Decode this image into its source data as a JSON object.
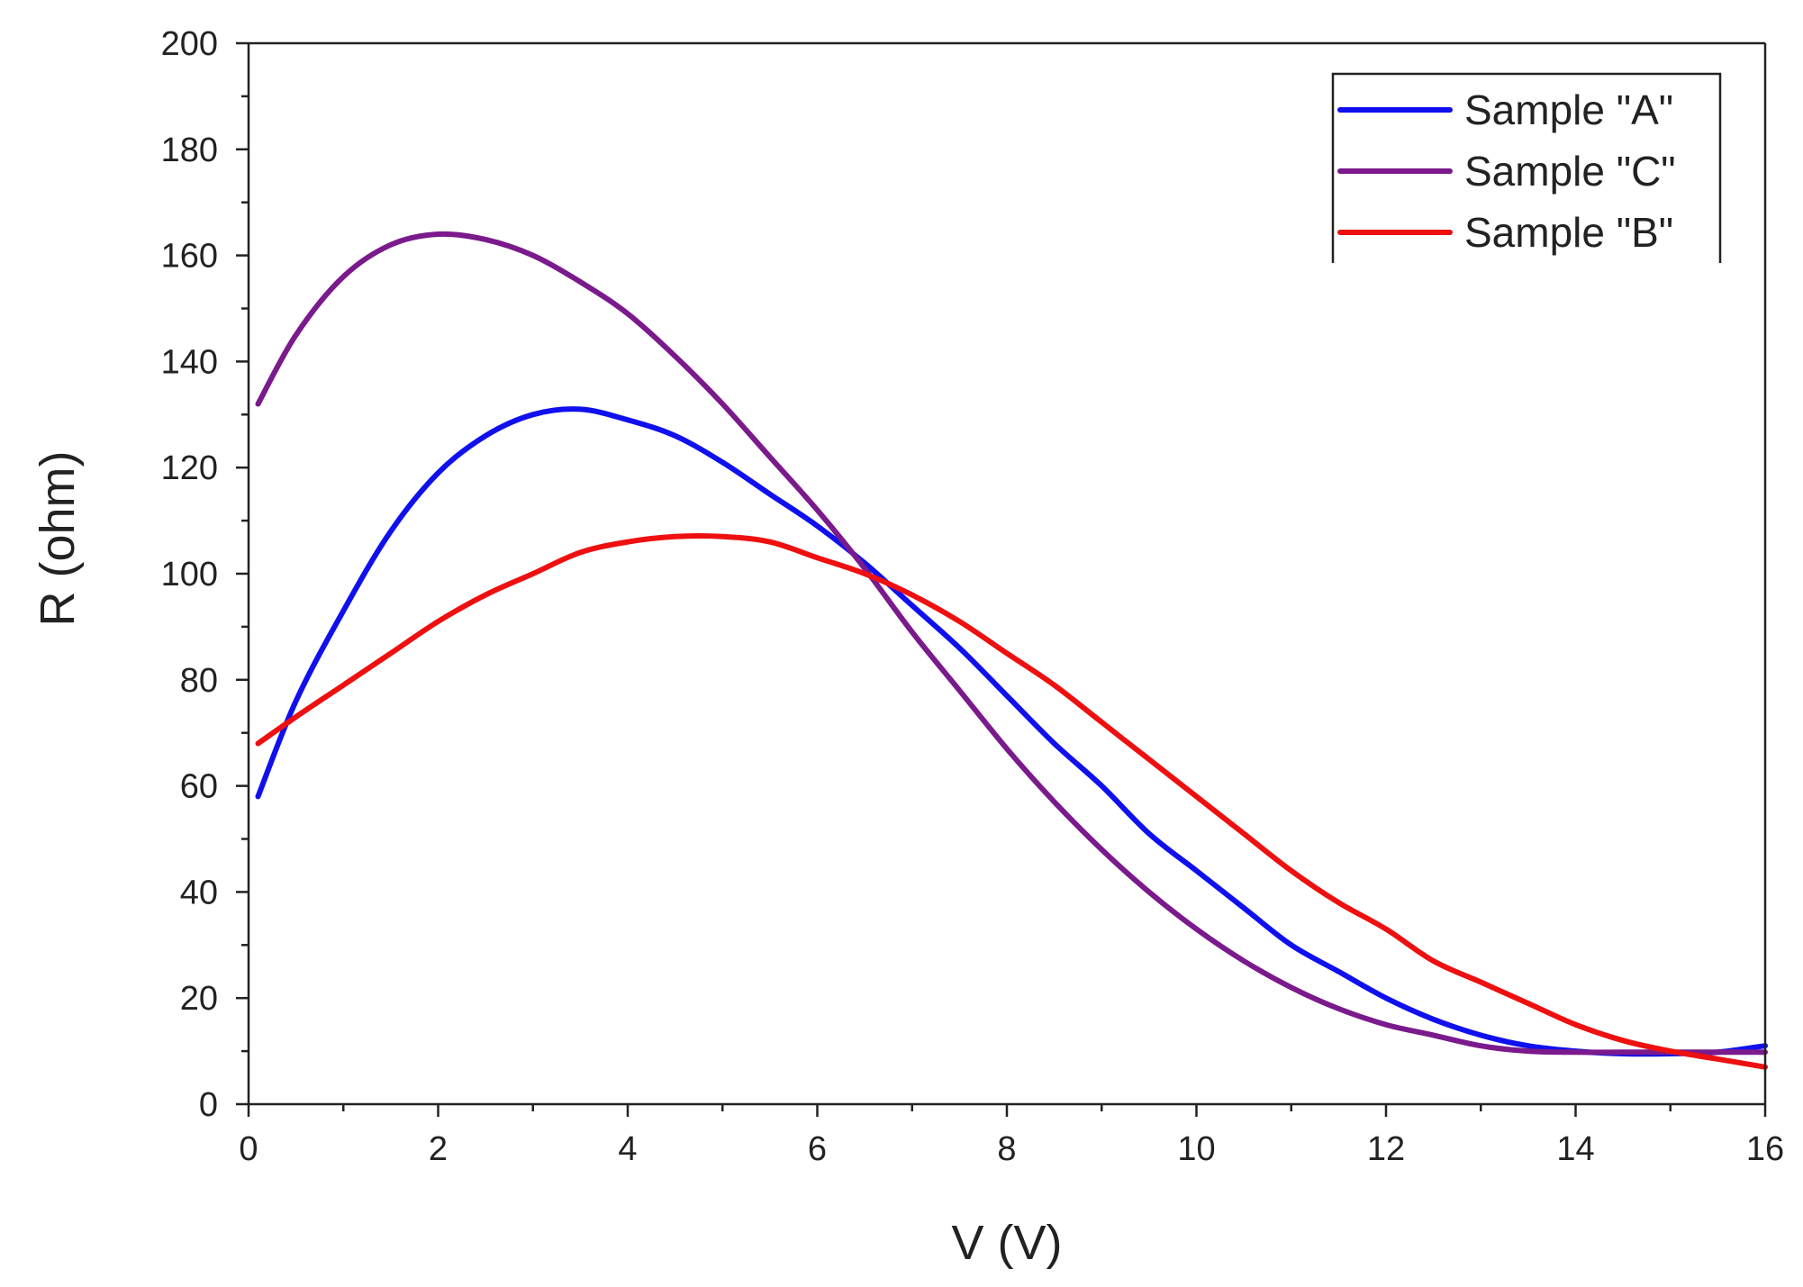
{
  "chart_data": {
    "type": "line",
    "title": "",
    "xlabel": "V (V)",
    "ylabel": "R (ohm)",
    "xlim": [
      0,
      16
    ],
    "ylim": [
      0,
      200
    ],
    "xticks": [
      0,
      2,
      4,
      6,
      8,
      10,
      12,
      14,
      16
    ],
    "yticks": [
      0,
      20,
      40,
      60,
      80,
      100,
      120,
      140,
      160,
      180,
      200
    ],
    "grid": false,
    "legend_position": "top-right",
    "series": [
      {
        "name": "Sample \"A\"",
        "color": "#1010ee",
        "x": [
          0.1,
          0.5,
          1,
          1.5,
          2,
          2.5,
          3,
          3.5,
          4,
          4.5,
          5,
          5.5,
          6,
          6.5,
          7,
          7.5,
          8,
          8.5,
          9,
          9.5,
          10,
          10.5,
          11,
          11.5,
          12,
          12.5,
          13,
          13.5,
          14,
          14.5,
          15,
          15.5,
          16
        ],
        "y": [
          58,
          76,
          93,
          108,
          119,
          126,
          130,
          131,
          129,
          126,
          121,
          115,
          109,
          102,
          94,
          86,
          77,
          68,
          60,
          51,
          44,
          37,
          30,
          25,
          20,
          16,
          13,
          11,
          10,
          9.5,
          9.5,
          9.8,
          11
        ]
      },
      {
        "name": "Sample \"C\"",
        "color": "#7a1a8c",
        "x": [
          0.1,
          0.5,
          1,
          1.5,
          2,
          2.5,
          3,
          3.5,
          4,
          4.5,
          5,
          5.5,
          6,
          6.5,
          7,
          7.5,
          8,
          8.5,
          9,
          9.5,
          10,
          10.5,
          11,
          11.5,
          12,
          12.5,
          13,
          13.5,
          14,
          14.5,
          15,
          15.5,
          16
        ],
        "y": [
          132,
          145,
          156,
          162,
          164,
          163,
          160,
          155,
          149,
          141,
          132,
          122,
          112,
          101,
          89,
          78,
          67,
          57,
          48,
          40,
          33,
          27,
          22,
          18,
          15,
          13,
          11,
          10,
          9.8,
          9.8,
          9.8,
          9.8,
          9.8
        ]
      },
      {
        "name": "Sample \"B\"",
        "color": "#ee1010",
        "x": [
          0.1,
          0.5,
          1,
          1.5,
          2,
          2.5,
          3,
          3.5,
          4,
          4.5,
          5,
          5.5,
          6,
          6.5,
          7,
          7.5,
          8,
          8.5,
          9,
          9.5,
          10,
          10.5,
          11,
          11.5,
          12,
          12.5,
          13,
          13.5,
          14,
          14.5,
          15,
          15.5,
          16
        ],
        "y": [
          68,
          73,
          79,
          85,
          91,
          96,
          100,
          104,
          106,
          107,
          107,
          106,
          103,
          100,
          96,
          91,
          85,
          79,
          72,
          65,
          58,
          51,
          44,
          38,
          33,
          27,
          23,
          19,
          15,
          12,
          10,
          8.5,
          7
        ]
      }
    ]
  }
}
